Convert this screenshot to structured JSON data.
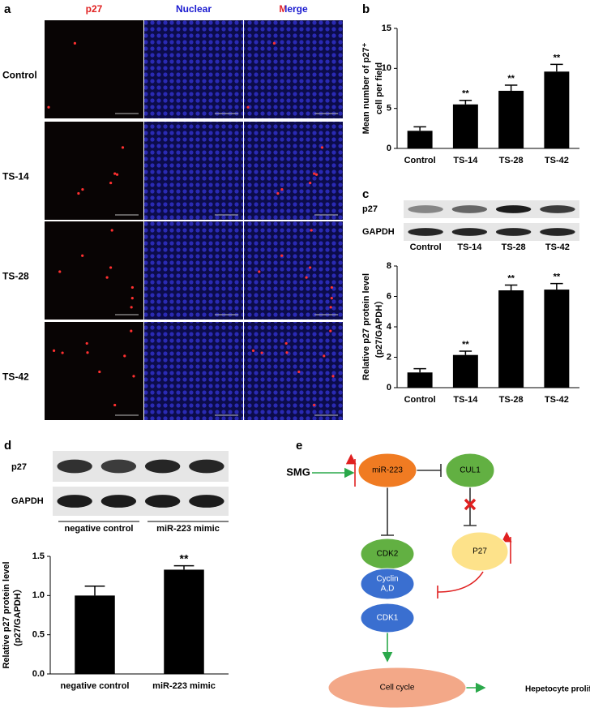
{
  "panels": [
    "a",
    "b",
    "c",
    "d",
    "e"
  ],
  "microscopy": {
    "columns": [
      "p27",
      "Nuclear",
      "Merge"
    ],
    "rows": [
      "Control",
      "TS-14",
      "TS-28",
      "TS-42"
    ]
  },
  "blot_c": {
    "rows": [
      "p27",
      "GAPDH"
    ],
    "lanes": [
      "Control",
      "TS-14",
      "TS-28",
      "TS-42"
    ]
  },
  "blot_d": {
    "rows": [
      "p27",
      "GAPDH"
    ],
    "groups": [
      "negative control",
      "miR-223 mimic"
    ]
  },
  "chart_data": [
    {
      "type": "bar",
      "categories": [
        "Control",
        "TS-14",
        "TS-28",
        "TS-42"
      ],
      "values": [
        2.2,
        5.5,
        7.2,
        9.6
      ],
      "errors": [
        0.5,
        0.5,
        0.7,
        0.9
      ],
      "annotations": [
        null,
        "**",
        "**",
        "**"
      ],
      "ylabel": [
        "Mean number of p27⁺",
        "cell per field"
      ],
      "ylim": [
        0,
        15
      ],
      "yticks": [
        0,
        5,
        10,
        15
      ],
      "color": "#000000"
    },
    {
      "type": "bar",
      "categories": [
        "Control",
        "TS-14",
        "TS-28",
        "TS-42"
      ],
      "values": [
        1.0,
        2.15,
        6.4,
        6.45
      ],
      "errors": [
        0.25,
        0.25,
        0.35,
        0.4
      ],
      "annotations": [
        null,
        "**",
        "**",
        "**"
      ],
      "ylabel": [
        "Relative p27 protein level",
        "(p27/GAPDH）"
      ],
      "ylim": [
        0,
        8
      ],
      "yticks": [
        0,
        2,
        4,
        6,
        8
      ],
      "color": "#000000"
    },
    {
      "type": "bar",
      "categories": [
        "negative control",
        "miR-223 mimic"
      ],
      "values": [
        1.0,
        1.33
      ],
      "errors": [
        0.12,
        0.05
      ],
      "annotations": [
        null,
        "**"
      ],
      "ylabel": [
        "Relative p27 protein level",
        "(p27/GAPDH）"
      ],
      "ylim": [
        0,
        1.5
      ],
      "yticks": [
        {
          "value": 0,
          "label": "0.0"
        },
        0.5,
        {
          "value": 1,
          "label": "1.0"
        },
        1.5
      ],
      "color": "#000000"
    }
  ],
  "diagram": {
    "nodes": [
      {
        "label": [
          "SMG"
        ]
      },
      {
        "label": [
          "miR-223"
        ]
      },
      {
        "label": [
          "CUL1"
        ]
      },
      {
        "label": [
          "CDK2"
        ]
      },
      {
        "label": [
          "P27"
        ]
      },
      {
        "label": [
          "Cyclin",
          "A,D"
        ]
      },
      {
        "label": [
          "CDK1"
        ]
      },
      {
        "label": [
          "Cell cycle"
        ]
      },
      {
        "label": [
          "Hepetocyte proliferation"
        ]
      }
    ]
  }
}
